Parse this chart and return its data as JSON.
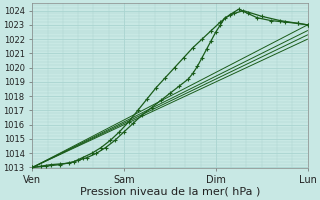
{
  "title": "",
  "xlabel": "Pression niveau de la mer( hPa )",
  "ylabel": "",
  "bg_color": "#c8e8e4",
  "grid_color": "#aad4d0",
  "line_color": "#1a5c1a",
  "ylim": [
    1013,
    1024.5
  ],
  "yticks": [
    1013,
    1014,
    1015,
    1016,
    1017,
    1018,
    1019,
    1020,
    1021,
    1022,
    1023,
    1024
  ],
  "xtick_labels": [
    "Ven",
    "Sam",
    "Dim",
    "Lun"
  ],
  "xtick_pos": [
    0,
    1,
    2,
    3
  ],
  "xlabel_fontsize": 8,
  "lines_smooth": [
    {
      "t": [
        0,
        3.0
      ],
      "v": [
        1013.0,
        1023.0
      ]
    },
    {
      "t": [
        0,
        3.0
      ],
      "v": [
        1013.0,
        1022.6
      ]
    },
    {
      "t": [
        0,
        3.0
      ],
      "v": [
        1013.0,
        1022.3
      ]
    },
    {
      "t": [
        0,
        3.0
      ],
      "v": [
        1013.0,
        1022.0
      ]
    }
  ],
  "line_marker1_t": [
    0,
    0.15,
    0.3,
    0.45,
    0.55,
    0.65,
    0.75,
    0.85,
    0.95,
    1.05,
    1.15,
    1.25,
    1.35,
    1.45,
    1.55,
    1.65,
    1.75,
    1.85,
    1.95,
    2.05,
    2.15,
    2.25,
    2.35,
    2.45,
    2.6,
    2.75,
    2.9,
    3.0
  ],
  "line_marker1_v": [
    1013.0,
    1013.1,
    1013.2,
    1013.4,
    1013.7,
    1014.0,
    1014.4,
    1014.9,
    1015.5,
    1016.2,
    1017.0,
    1017.8,
    1018.6,
    1019.3,
    1020.0,
    1020.7,
    1021.4,
    1022.0,
    1022.6,
    1023.2,
    1023.7,
    1024.1,
    1023.8,
    1023.5,
    1023.3,
    1023.2,
    1023.1,
    1023.0
  ],
  "line_marker2_t": [
    0,
    0.1,
    0.2,
    0.3,
    0.4,
    0.5,
    0.6,
    0.7,
    0.8,
    0.9,
    1.0,
    1.1,
    1.2,
    1.3,
    1.4,
    1.5,
    1.6,
    1.7,
    1.75,
    1.8,
    1.85,
    1.9,
    1.95,
    2.0,
    2.05,
    2.1,
    2.2,
    2.3,
    2.5,
    2.7,
    2.9,
    3.0
  ],
  "line_marker2_v": [
    1013.0,
    1013.1,
    1013.2,
    1013.25,
    1013.3,
    1013.5,
    1013.7,
    1014.0,
    1014.4,
    1014.9,
    1015.5,
    1016.1,
    1016.7,
    1017.2,
    1017.7,
    1018.2,
    1018.7,
    1019.2,
    1019.6,
    1020.1,
    1020.7,
    1021.3,
    1021.9,
    1022.5,
    1023.0,
    1023.5,
    1023.8,
    1024.0,
    1023.6,
    1023.3,
    1023.1,
    1023.0
  ]
}
